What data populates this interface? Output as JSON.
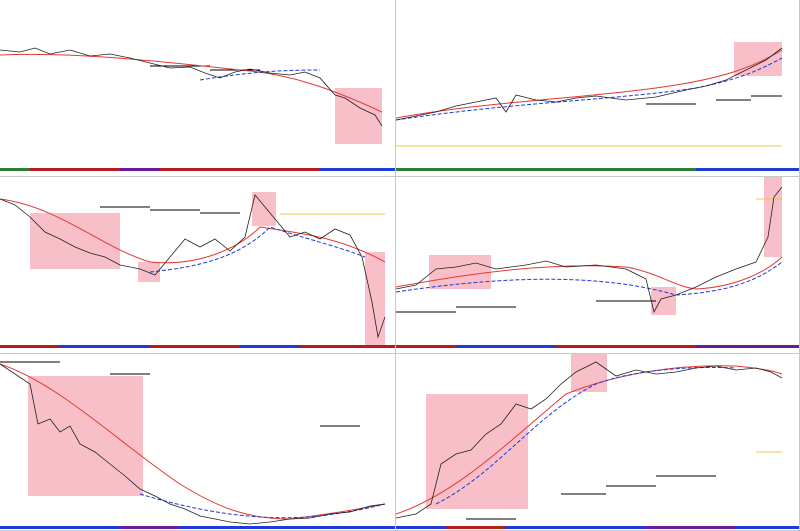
{
  "panes": [
    {
      "id": "p1",
      "title": "",
      "price_badge": ""
    },
    {
      "id": "p2",
      "title": "",
      "price_badge": ""
    },
    {
      "id": "p3",
      "title": "",
      "price_badge": ""
    },
    {
      "id": "p4",
      "title": "",
      "price_badge": ""
    },
    {
      "id": "p5",
      "title": "",
      "price_badge": ""
    },
    {
      "id": "p6",
      "title": "",
      "price_badge": ""
    }
  ],
  "colors": {
    "price_line": "#222222",
    "ma_red": "#e53935",
    "ma_blue": "#1e3ad8",
    "highlight": "#f28b9a",
    "level_line": "#000000",
    "badge": "#f6c64b"
  },
  "icons": [
    "chart-icon"
  ]
}
